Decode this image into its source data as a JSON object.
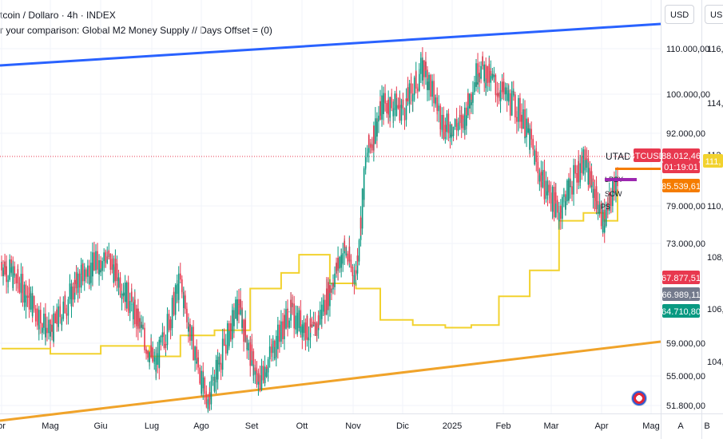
{
  "header": {
    "title": "tcoin / Dollaro · 4h · INDEX",
    "subtitle": "r your comparison: Global M2 Money Supply // Days Offset = (0)"
  },
  "currency": {
    "left": "USD",
    "right": "USD"
  },
  "chart_data": {
    "type": "line",
    "title": "tcoin / Dollaro · 4h · INDEX",
    "x_ticks": [
      "or",
      "Mag",
      "Giu",
      "Lug",
      "Ago",
      "Set",
      "Ott",
      "Nov",
      "Dic",
      "2025",
      "Feb",
      "Mar",
      "Apr",
      "Mag",
      "A",
      "B"
    ],
    "y_left_ticks": [
      "110.000,00",
      "100.000,00",
      "92.000,00",
      "79.000,00",
      "73.000,00",
      "59.000,00",
      "55.000,00",
      "51.800,00"
    ],
    "y_right_ticks": [
      "116,00",
      "114,00",
      "112,00",
      "110,00",
      "108,00",
      "106,00",
      "104,00"
    ],
    "y_scale": "log",
    "series": [
      {
        "name": "BTCUSD",
        "color": "#26a69a",
        "x": [
          "2024-04-01",
          "2024-04-15",
          "2024-05-01",
          "2024-05-20",
          "2024-06-05",
          "2024-06-20",
          "2024-07-05",
          "2024-07-20",
          "2024-08-05",
          "2024-08-25",
          "2024-09-06",
          "2024-09-25",
          "2024-10-10",
          "2024-10-29",
          "2024-11-05",
          "2024-11-12",
          "2024-11-22",
          "2024-12-05",
          "2024-12-17",
          "2024-12-30",
          "2025-01-10",
          "2025-01-20",
          "2025-02-01",
          "2025-02-15",
          "2025-02-28",
          "2025-03-10",
          "2025-03-25",
          "2025-04-07",
          "2025-04-15"
        ],
        "values": [
          70000,
          66000,
          60000,
          68000,
          71000,
          64000,
          56000,
          67000,
          52000,
          64000,
          54000,
          63000,
          60000,
          72000,
          68000,
          88000,
          98000,
          97000,
          106000,
          93000,
          94000,
          106000,
          101000,
          96000,
          83000,
          78000,
          87000,
          76000,
          84000
        ]
      },
      {
        "name": "Global M2 Money Supply",
        "color": "#f2d22e",
        "x": [
          "2024-04-01",
          "2024-05-01",
          "2024-06-01",
          "2024-07-01",
          "2024-07-20",
          "2024-08-10",
          "2024-09-01",
          "2024-09-20",
          "2024-10-01",
          "2024-10-20",
          "2024-11-05",
          "2024-11-20",
          "2024-12-10",
          "2024-12-30",
          "2025-01-15",
          "2025-02-01",
          "2025-02-20",
          "2025-03-10",
          "2025-03-25",
          "2025-04-07",
          "2025-04-15"
        ],
        "values": [
          104.5,
          104.3,
          104.6,
          104.2,
          105.0,
          105.2,
          106.8,
          107.4,
          108.1,
          107.0,
          106.8,
          105.6,
          105.4,
          105.3,
          105.4,
          106.5,
          107.5,
          109.4,
          109.7,
          109.4,
          110.6
        ]
      }
    ],
    "channel_lines": [
      {
        "name": "upper",
        "color": "#2962ff"
      },
      {
        "name": "lower",
        "color": "#f0a32a"
      }
    ],
    "price_labels": [
      {
        "text": "BTCUSD",
        "color": "#e8384f"
      },
      {
        "text": "88.012,46",
        "color": "#e8384f"
      },
      {
        "text": "01:19:01",
        "color": "#e8384f"
      },
      {
        "text": "85.539,61",
        "color": "#f57c00"
      },
      {
        "text": "111,",
        "color": "#f2d22e"
      },
      {
        "text": "67.877,51",
        "color": "#e8384f"
      },
      {
        "text": "66.989,11",
        "color": "#737a8c"
      },
      {
        "text": "64.710,80",
        "color": "#089981"
      }
    ],
    "annotations": [
      "UTAD",
      "LPSY",
      "SOW",
      "PS"
    ]
  }
}
